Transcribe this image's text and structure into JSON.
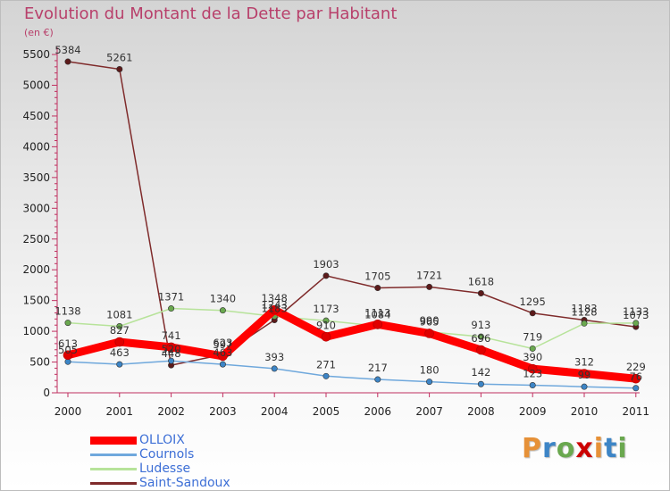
{
  "chart_data": {
    "type": "line",
    "title": "Evolution du Montant de la Dette par Habitant",
    "subtitle": "(en €)",
    "xlabel": "",
    "ylabel": "",
    "categories": [
      "2000",
      "2001",
      "2002",
      "2003",
      "2004",
      "2005",
      "2006",
      "2007",
      "2008",
      "2009",
      "2010",
      "2011"
    ],
    "ylim": [
      0,
      5500
    ],
    "yticks": [
      0,
      500,
      1000,
      1500,
      2000,
      2500,
      3000,
      3500,
      4000,
      4500,
      5000,
      5500
    ],
    "grid": false,
    "legend_position": "bottom-left",
    "series": [
      {
        "name": "OLLOIX",
        "color": "#ff0000",
        "marker": "#e00000",
        "values": [
          613,
          827,
          741,
          597,
          1348,
          910,
          1113,
          965,
          696,
          390,
          312,
          229
        ],
        "labels": [
          "613",
          "827",
          "741",
          "597",
          "1348",
          "910",
          "1113",
          "965",
          "696",
          "390",
          "312",
          "229"
        ]
      },
      {
        "name": "Cournols",
        "color": "#6fa8dc",
        "marker": "#3d85c6",
        "values": [
          505,
          463,
          520,
          463,
          393,
          271,
          217,
          180,
          142,
          123,
          99,
          76
        ],
        "labels": [
          "505",
          "463",
          "520",
          "463",
          "393",
          "271",
          "217",
          "180",
          "142",
          "123",
          "99",
          "76"
        ]
      },
      {
        "name": "Ludesse",
        "color": "#b7e39a",
        "marker": "#6aa84f",
        "values": [
          1138,
          1081,
          1371,
          1340,
          1243,
          1173,
          1084,
          990,
          913,
          719,
          1128,
          1133
        ],
        "labels": [
          "1138",
          "1081",
          "1371",
          "1340",
          "1243",
          "1173",
          "1084",
          "990",
          "913",
          "719",
          "1128",
          "1133"
        ]
      },
      {
        "name": "Saint-Sandoux",
        "color": "#7f2b2b",
        "marker": "#5c1a1a",
        "values": [
          5384,
          5261,
          448,
          623,
          1183,
          1903,
          1705,
          1721,
          1618,
          1295,
          1183,
          1073
        ],
        "labels": [
          "5384",
          "5261",
          "448",
          "623",
          "1183",
          "1903",
          "1705",
          "1721",
          "1618",
          "1295",
          "1183",
          "1073"
        ]
      }
    ]
  },
  "logo": {
    "text": "Proxiti",
    "colors": [
      "#e69138",
      "#3d85c6",
      "#6aa84f",
      "#cc0000",
      "#e69138",
      "#3d85c6",
      "#6aa84f"
    ]
  }
}
